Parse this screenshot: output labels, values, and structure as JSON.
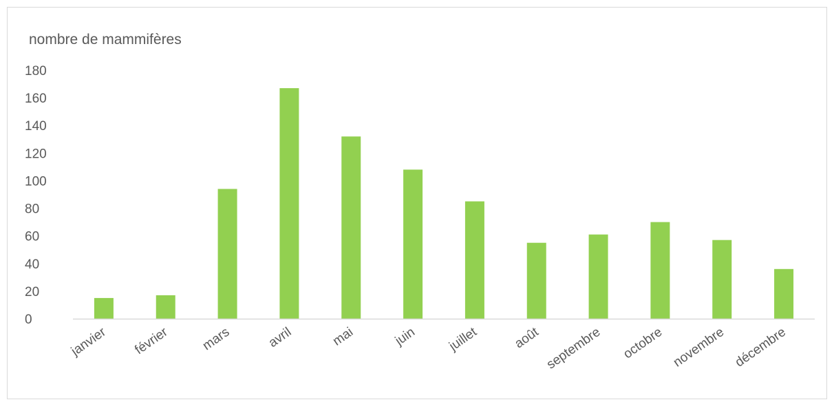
{
  "chart_data": {
    "type": "bar",
    "title": "",
    "ylabel": "nombre de mammifères",
    "xlabel": "",
    "categories": [
      "janvier",
      "février",
      "mars",
      "avril",
      "mai",
      "juin",
      "juillet",
      "août",
      "septembre",
      "octobre",
      "novembre",
      "décembre"
    ],
    "values": [
      15,
      17,
      94,
      167,
      132,
      108,
      85,
      55,
      61,
      70,
      57,
      36
    ],
    "ylim": [
      0,
      180
    ],
    "yticks": [
      "0",
      "20",
      "40",
      "60",
      "80",
      "100",
      "120",
      "140",
      "160",
      "180"
    ],
    "grid": false,
    "legend": "none",
    "bar_color": "#92d050",
    "axis_color": "#d9d9d9",
    "text_color": "#595959"
  }
}
